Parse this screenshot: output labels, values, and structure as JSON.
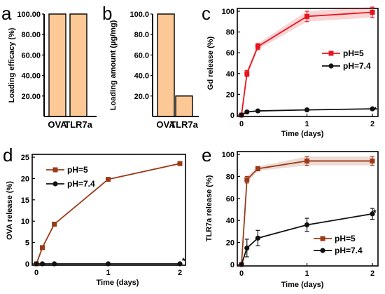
{
  "chart_data": [
    {
      "panel": "a",
      "type": "bar",
      "categories": [
        "OVA",
        "TLR7a"
      ],
      "values": [
        100,
        100
      ],
      "ylabel": "Loading efficacy (%)",
      "ylim": [
        0,
        100
      ],
      "yticks": [
        "20.00",
        "40.00",
        "60.00",
        "80.00",
        "100.00"
      ],
      "ytick_values": [
        20,
        40,
        60,
        80,
        100
      ],
      "bar_color": "#fcc895"
    },
    {
      "panel": "b",
      "type": "bar",
      "categories": [
        "OVA",
        "TLR7a"
      ],
      "values": [
        100,
        20
      ],
      "ylabel": "Loading amount (µg/mg)",
      "ylim": [
        0,
        100
      ],
      "yticks": [
        "20.0",
        "40.0",
        "60.0",
        "80.0",
        "100.0"
      ],
      "ytick_values": [
        20,
        40,
        60,
        80,
        100
      ],
      "bar_color": "#fcc895"
    },
    {
      "panel": "c",
      "type": "line",
      "x": [
        0,
        0.083,
        0.25,
        1,
        2
      ],
      "xlabel": "Time (days)",
      "ylabel": "Gd release (%)",
      "xlim": [
        0,
        2
      ],
      "ylim": [
        0,
        100
      ],
      "xticks": [
        0,
        1,
        2
      ],
      "yticks": [
        0,
        20,
        40,
        60,
        80,
        100
      ],
      "series": [
        {
          "name": "pH=5",
          "color": "#e8141c",
          "marker": "square",
          "values": [
            0,
            40,
            66,
            95,
            99
          ],
          "errors": [
            0,
            3,
            3,
            5,
            5
          ],
          "band": true
        },
        {
          "name": "pH=7.4",
          "color": "#111111",
          "marker": "circle",
          "values": [
            0,
            3,
            4,
            5,
            6
          ],
          "errors": [
            0,
            1,
            1,
            1,
            1
          ]
        }
      ],
      "legend": "middle-right",
      "annotation": "*"
    },
    {
      "panel": "d",
      "type": "line",
      "x": [
        0,
        0.083,
        0.25,
        1,
        2
      ],
      "xlabel": "Time (days)",
      "ylabel": "OVA release (%)",
      "xlim": [
        0,
        2
      ],
      "ylim": [
        0,
        25
      ],
      "xticks": [
        0,
        1,
        2
      ],
      "yticks": [
        0,
        5,
        10,
        15,
        20,
        25
      ],
      "series": [
        {
          "name": "pH=5",
          "color": "#9b3a17",
          "marker": "square",
          "values": [
            0,
            3.8,
            9.3,
            19.8,
            23.5
          ],
          "errors": [
            0,
            0,
            0,
            0,
            0
          ]
        },
        {
          "name": "pH=7.4",
          "color": "#111111",
          "marker": "circle",
          "values": [
            0,
            0,
            0,
            0,
            0
          ],
          "errors": [
            0,
            0,
            0,
            0,
            0
          ]
        }
      ],
      "legend": "top-left",
      "annotation": "*"
    },
    {
      "panel": "e",
      "type": "line",
      "x": [
        0,
        0.083,
        0.25,
        1,
        2
      ],
      "xlabel": "Time (days)",
      "ylabel": "TLR7a release (%)",
      "xlim": [
        0,
        2
      ],
      "ylim": [
        0,
        100
      ],
      "xticks": [
        0,
        1,
        2
      ],
      "yticks": [
        0,
        20,
        40,
        60,
        80,
        100
      ],
      "series": [
        {
          "name": "pH=5",
          "color": "#9b3a17",
          "marker": "square",
          "values": [
            0,
            77,
            87,
            94,
            94
          ],
          "errors": [
            0,
            3,
            2,
            4,
            4
          ],
          "band": true
        },
        {
          "name": "pH=7.4",
          "color": "#111111",
          "marker": "circle",
          "values": [
            0,
            15,
            24,
            36,
            46
          ],
          "errors": [
            0,
            8,
            7,
            6,
            5
          ]
        }
      ],
      "legend": "bottom-right",
      "annotation": "*"
    }
  ]
}
